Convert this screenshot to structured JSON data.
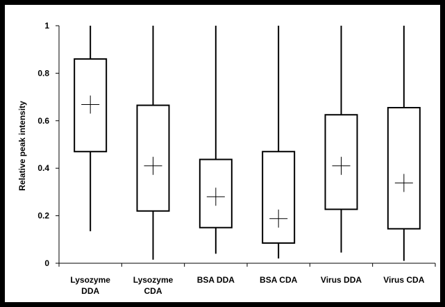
{
  "chart_data": {
    "type": "box",
    "title": "",
    "xlabel": "",
    "ylabel": "Relative peak intensity",
    "ylim": [
      0,
      1
    ],
    "yticks": [
      {
        "value": 0,
        "label": "0"
      },
      {
        "value": 0.2,
        "label": "0.2"
      },
      {
        "value": 0.4,
        "label": "0.4"
      },
      {
        "value": 0.6,
        "label": "0.6"
      },
      {
        "value": 0.8,
        "label": "0.8"
      },
      {
        "value": 1,
        "label": "1"
      }
    ],
    "grid": false,
    "categories": [
      {
        "line1": "Lysozyme",
        "line2": "DDA"
      },
      {
        "line1": "Lysozyme",
        "line2": "CDA"
      },
      {
        "line1": "BSA DDA",
        "line2": ""
      },
      {
        "line1": "BSA CDA",
        "line2": ""
      },
      {
        "line1": "Virus DDA",
        "line2": ""
      },
      {
        "line1": "Virus CDA",
        "line2": ""
      }
    ],
    "boxes": [
      {
        "min": 0.135,
        "q1": 0.47,
        "q3": 0.86,
        "max": 1,
        "mean": 0.668
      },
      {
        "min": 0.015,
        "q1": 0.22,
        "q3": 0.665,
        "max": 1,
        "mean": 0.41
      },
      {
        "min": 0.04,
        "q1": 0.15,
        "q3": 0.437,
        "max": 1,
        "mean": 0.28
      },
      {
        "min": 0.02,
        "q1": 0.085,
        "q3": 0.47,
        "max": 1,
        "mean": 0.188
      },
      {
        "min": 0.045,
        "q1": 0.227,
        "q3": 0.625,
        "max": 1,
        "mean": 0.41
      },
      {
        "min": 0.01,
        "q1": 0.145,
        "q3": 0.655,
        "max": 1,
        "mean": 0.338
      }
    ]
  }
}
